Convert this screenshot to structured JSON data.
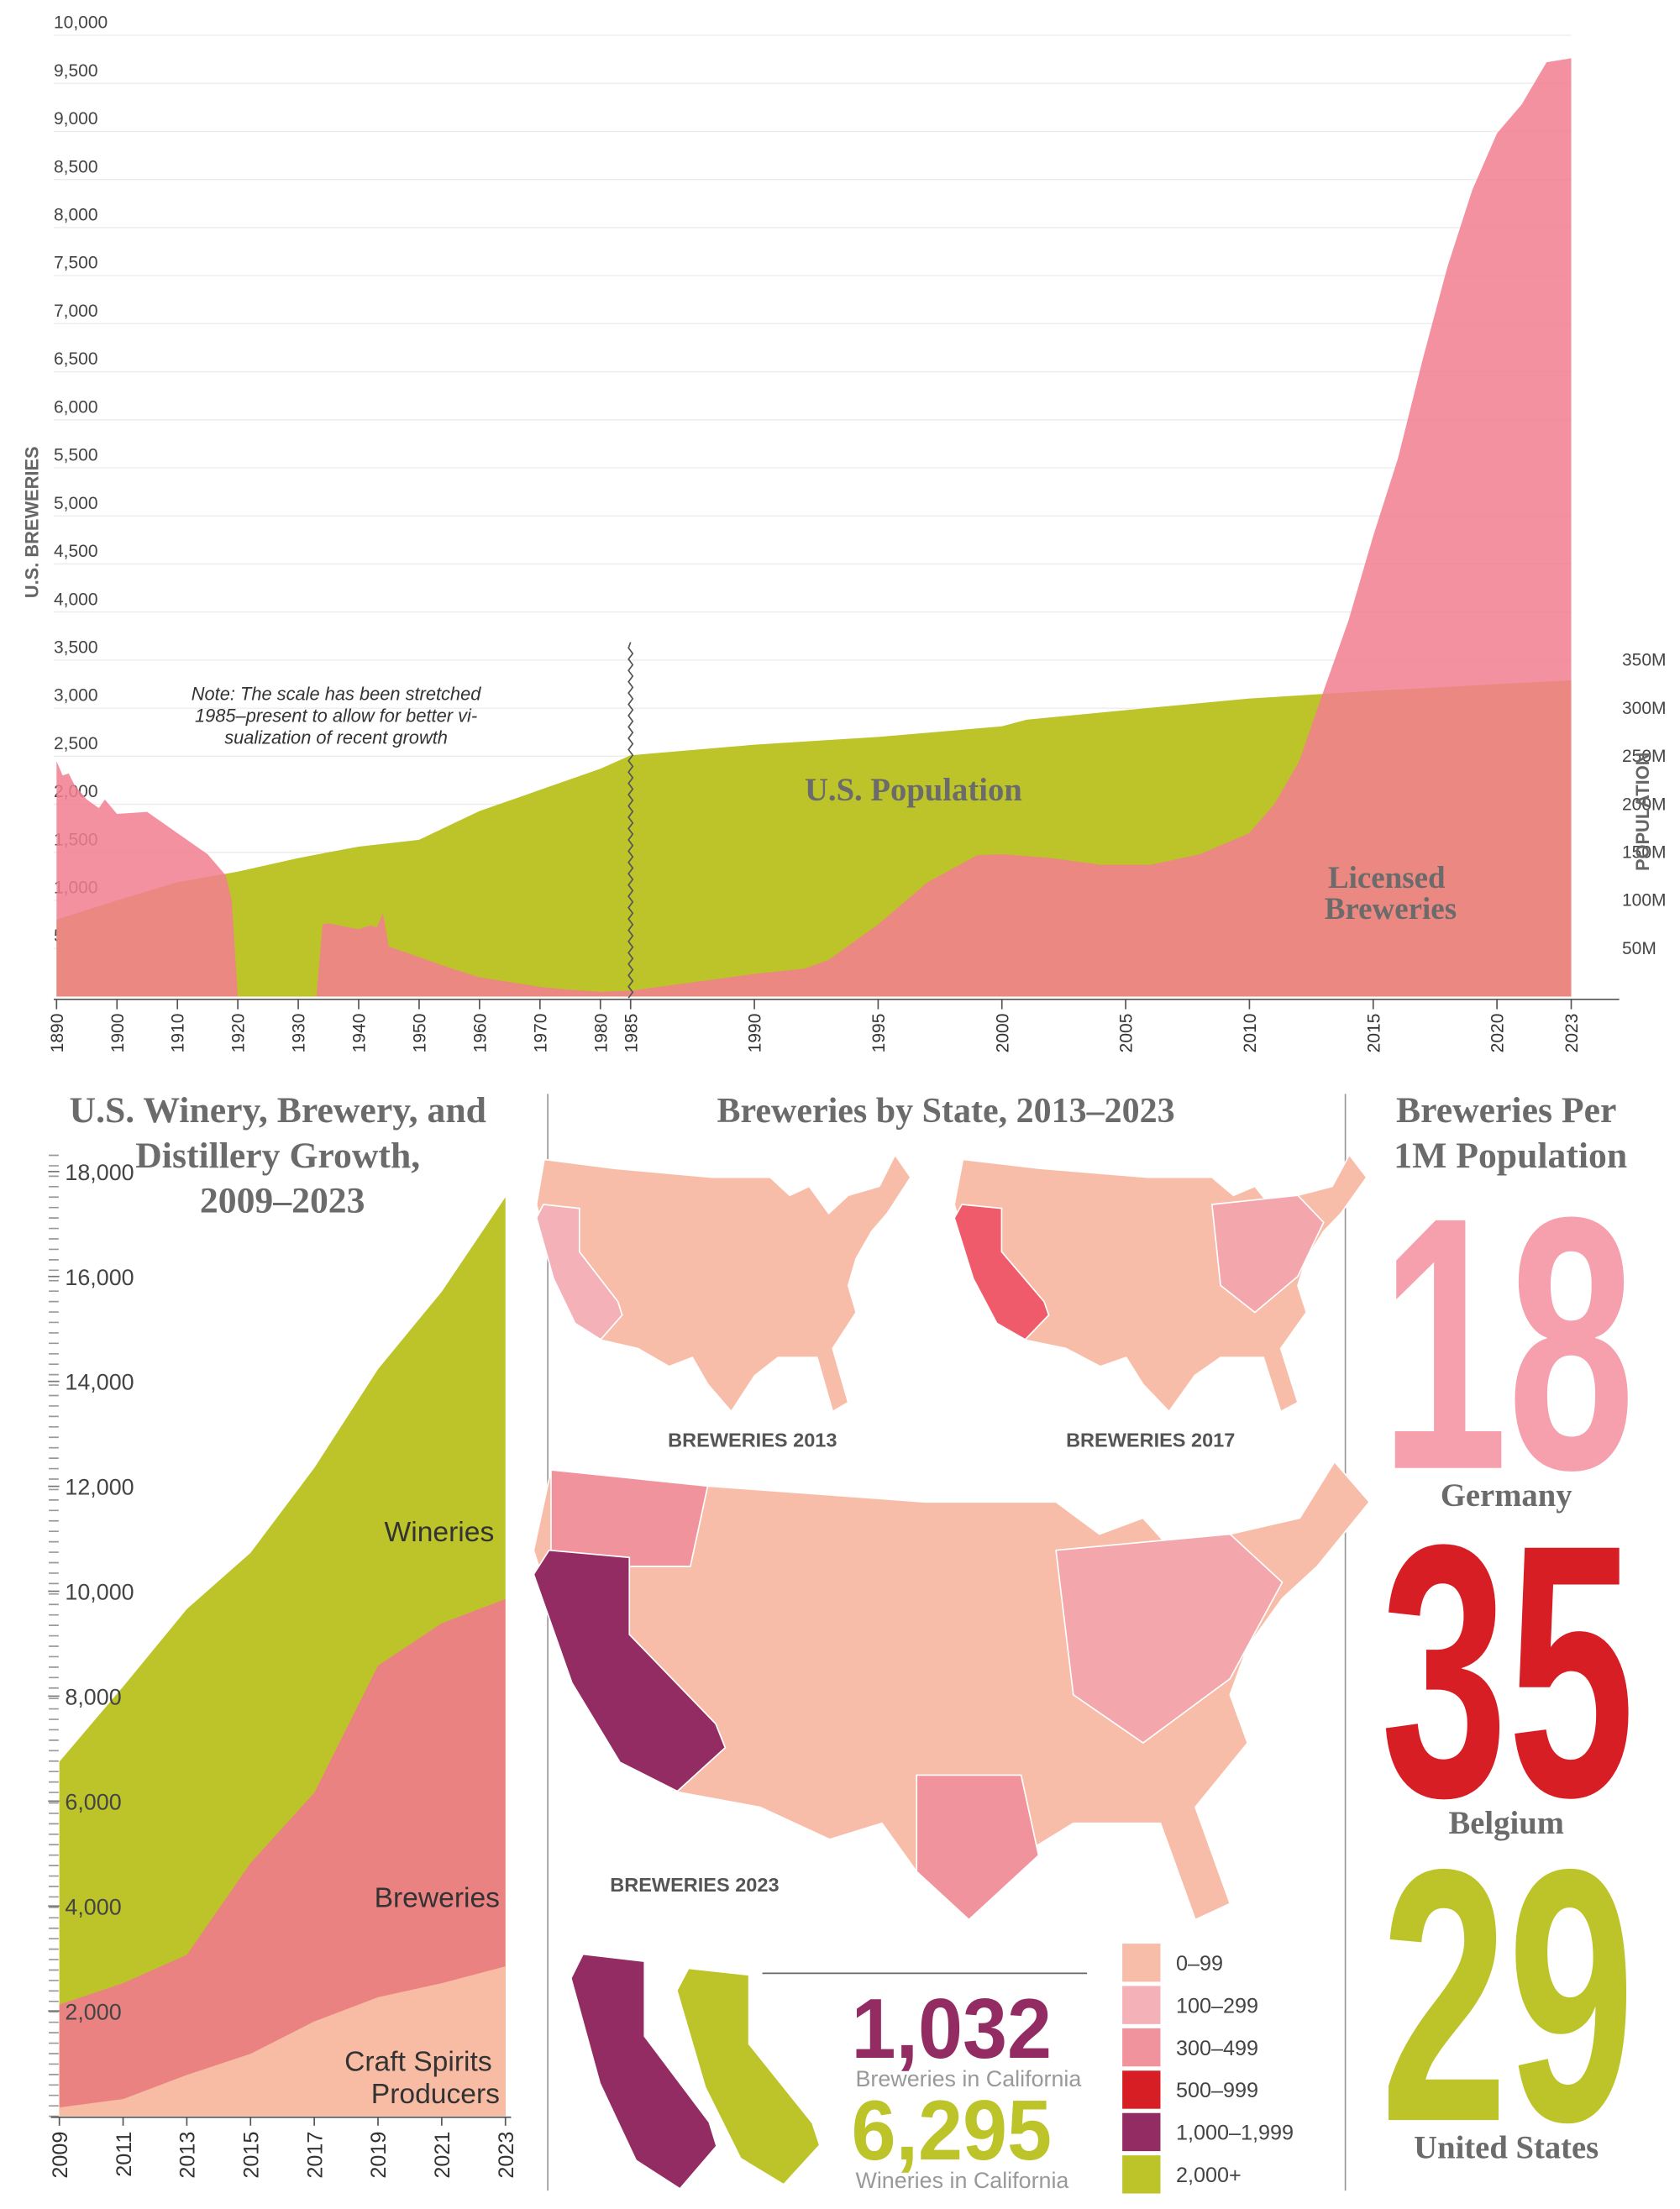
{
  "chart_data": [
    {
      "type": "area",
      "ylabel": "U.S. BREWERIES",
      "y2label": "POPULATION",
      "note": [
        "Note: The scale has been stretched",
        "1985–present to allow for better vi-",
        "sualization of recent growth"
      ],
      "xlim": [
        1890,
        2023
      ],
      "xbreak": 1985,
      "xticks": [
        1890,
        1900,
        1910,
        1920,
        1930,
        1940,
        1950,
        1960,
        1970,
        1980,
        1985,
        1990,
        1995,
        2000,
        2005,
        2010,
        2015,
        2020,
        2023
      ],
      "ylim": [
        0,
        10000
      ],
      "yticks": [
        500,
        {
          "value": 1000,
          "label": "1,000"
        },
        {
          "value": 1500,
          "label": "1,500"
        },
        {
          "value": 2000,
          "label": "2,000"
        },
        {
          "value": 2500,
          "label": "2,500"
        },
        {
          "value": 3000,
          "label": "3,000"
        },
        {
          "value": 3500,
          "label": "3,500"
        },
        {
          "value": 4000,
          "label": "4,000"
        },
        {
          "value": 4500,
          "label": "4,500"
        },
        {
          "value": 5000,
          "label": "5,000"
        },
        {
          "value": 5500,
          "label": "5,500"
        },
        {
          "value": 6000,
          "label": "6,000"
        },
        {
          "value": 6500,
          "label": "6,500"
        },
        {
          "value": 7000,
          "label": "7,000"
        },
        {
          "value": 7500,
          "label": "7,500"
        },
        {
          "value": 8000,
          "label": "8,000"
        },
        {
          "value": 8500,
          "label": "8,500"
        },
        {
          "value": 9000,
          "label": "9,000"
        },
        {
          "value": 9500,
          "label": "9,500"
        },
        {
          "value": 10000,
          "label": "10,000"
        }
      ],
      "y2lim": [
        0,
        1000000000
      ],
      "y2ticks": [
        {
          "value": 50000000,
          "label": "50M"
        },
        {
          "value": 100000000,
          "label": "100M"
        },
        {
          "value": 150000000,
          "label": "150M"
        },
        {
          "value": 200000000,
          "label": "200M"
        },
        {
          "value": 250000000,
          "label": "250M"
        },
        {
          "value": 300000000,
          "label": "300M"
        },
        {
          "value": 350000000,
          "label": "350M"
        }
      ],
      "grid": true,
      "series": [
        {
          "name": "U.S. Population",
          "color": "#bcc42a",
          "axis": "y2",
          "x": [
            1890,
            1900,
            1910,
            1920,
            1930,
            1940,
            1950,
            1960,
            1970,
            1980,
            1985,
            1990,
            1995,
            2000,
            2001,
            2005,
            2010,
            2015,
            2020,
            2023
          ],
          "values": [
            80000000,
            100000000,
            119000000,
            130000000,
            144000000,
            156000000,
            163000000,
            193000000,
            215000000,
            237000000,
            251000000,
            262000000,
            270000000,
            281000000,
            288000000,
            298000000,
            310000000,
            318000000,
            325000000,
            329000000
          ]
        },
        {
          "name": "Licensed Breweries",
          "color": "#f27e90",
          "x": [
            1890,
            1891,
            1892,
            1893,
            1895,
            1897,
            1898,
            1900,
            1905,
            1910,
            1915,
            1918,
            1919,
            1920,
            1933,
            1934,
            1935,
            1940,
            1942,
            1943,
            1944,
            1945,
            1950,
            1955,
            1960,
            1965,
            1970,
            1975,
            1980,
            1985,
            1990,
            1992,
            1993,
            1995,
            1997,
            1999,
            2000,
            2002,
            2004,
            2006,
            2008,
            2010,
            2011,
            2012,
            2013,
            2014,
            2015,
            2016,
            2017,
            2018,
            2019,
            2020,
            2021,
            2022,
            2023
          ],
          "values": [
            2450,
            2300,
            2320,
            2200,
            2050,
            1960,
            2050,
            1900,
            1920,
            1700,
            1480,
            1260,
            1000,
            0,
            0,
            750,
            760,
            700,
            740,
            720,
            870,
            520,
            410,
            300,
            200,
            150,
            100,
            70,
            50,
            60,
            235,
            290,
            380,
            750,
            1190,
            1470,
            1480,
            1440,
            1370,
            1370,
            1480,
            1700,
            2000,
            2440,
            3180,
            3910,
            4790,
            5600,
            6630,
            7590,
            8390,
            8980,
            9280,
            9720,
            9760
          ]
        }
      ]
    },
    {
      "type": "area",
      "title": "U.S. Winery, Brewery, and Distillery Growth, 2009–2023",
      "xlim": [
        2009,
        2023
      ],
      "xticks": [
        2009,
        2011,
        2013,
        2015,
        2017,
        2019,
        2021,
        2023
      ],
      "ylim": [
        0,
        18000
      ],
      "yticks": [
        {
          "value": 2000,
          "label": "2,000"
        },
        {
          "value": 4000,
          "label": "4,000"
        },
        {
          "value": 6000,
          "label": "6,000"
        },
        {
          "value": 8000,
          "label": "8,000"
        },
        {
          "value": 10000,
          "label": "10,000"
        },
        {
          "value": 12000,
          "label": "12,000"
        },
        {
          "value": 14000,
          "label": "14,000"
        },
        {
          "value": 16000,
          "label": "16,000"
        },
        {
          "value": 18000,
          "label": "18,000"
        }
      ],
      "x": [
        2009,
        2011,
        2013,
        2015,
        2017,
        2019,
        2021,
        2023
      ],
      "series": [
        {
          "name": "Wineries",
          "color": "#bcc42a",
          "values": [
            6750,
            8180,
            9660,
            10730,
            12350,
            14230,
            15710,
            17510
          ]
        },
        {
          "name": "Breweries",
          "color": "#ea8282",
          "values": [
            2120,
            2530,
            3070,
            4820,
            6160,
            8580,
            9390,
            9850
          ]
        },
        {
          "name": "Craft Spirits Producers",
          "color": "#f8bca4",
          "values": [
            160,
            320,
            780,
            1180,
            1800,
            2260,
            2530,
            2850
          ]
        }
      ]
    }
  ],
  "maps": {
    "title": "Breweries by State, 2013–2023",
    "panels": [
      {
        "label": "BREWERIES 2013",
        "california_color": "#f5b1b8"
      },
      {
        "label": "BREWERIES 2017",
        "california_color": "#ef5b6b"
      },
      {
        "label": "BREWERIES 2023",
        "california_color": "#932c62"
      }
    ],
    "legend": [
      {
        "label": "0–99",
        "color": "#f8bda9"
      },
      {
        "label": "100–299",
        "color": "#f5b1b8"
      },
      {
        "label": "300–499",
        "color": "#f0939c"
      },
      {
        "label": "500–999",
        "color": "#d71e25"
      },
      {
        "label": "1,000–1,999",
        "color": "#932c62"
      },
      {
        "label": "2,000+",
        "color": "#bcc42a"
      }
    ],
    "california": [
      {
        "value": "1,032",
        "label": "Breweries in California",
        "color": "#932c62"
      },
      {
        "value": "6,295",
        "label": "Wineries in California",
        "color": "#bcc42a"
      }
    ]
  },
  "per_capita": {
    "title": "Breweries Per 1M Population",
    "countries": [
      {
        "value": 18,
        "name": "Germany",
        "color": "#f5a0ac"
      },
      {
        "value": 35,
        "name": "Belgium",
        "color": "#d71e25"
      },
      {
        "value": 29,
        "name": "United States",
        "color": "#bcc42a"
      }
    ]
  }
}
